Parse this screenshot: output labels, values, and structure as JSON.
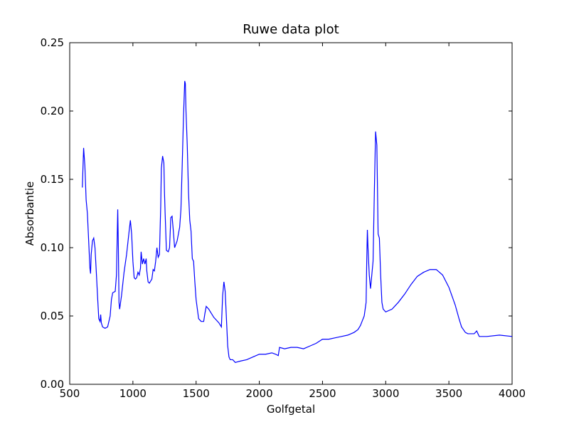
{
  "chart_data": {
    "type": "line",
    "title": "Ruwe data plot",
    "x_label": "Golfgetal",
    "y_label": "Absorbantie",
    "x": [
      600,
      610,
      620,
      630,
      640,
      650,
      660,
      665,
      670,
      680,
      690,
      700,
      710,
      720,
      730,
      740,
      745,
      750,
      760,
      780,
      800,
      820,
      830,
      840,
      860,
      870,
      880,
      885,
      890,
      895,
      910,
      930,
      950,
      970,
      980,
      990,
      1000,
      1010,
      1020,
      1030,
      1040,
      1050,
      1060,
      1065,
      1075,
      1085,
      1095,
      1105,
      1110,
      1120,
      1130,
      1150,
      1160,
      1170,
      1180,
      1190,
      1200,
      1210,
      1220,
      1225,
      1235,
      1245,
      1250,
      1255,
      1265,
      1280,
      1290,
      1300,
      1310,
      1320,
      1330,
      1350,
      1370,
      1380,
      1390,
      1400,
      1410,
      1415,
      1420,
      1430,
      1440,
      1450,
      1460,
      1470,
      1480,
      1490,
      1500,
      1510,
      1520,
      1540,
      1560,
      1570,
      1580,
      1600,
      1620,
      1640,
      1660,
      1680,
      1700,
      1710,
      1720,
      1730,
      1740,
      1750,
      1760,
      1770,
      1790,
      1810,
      1850,
      1900,
      1950,
      2000,
      2050,
      2100,
      2130,
      2150,
      2160,
      2200,
      2250,
      2300,
      2350,
      2400,
      2450,
      2500,
      2550,
      2600,
      2650,
      2700,
      2750,
      2780,
      2800,
      2830,
      2845,
      2850,
      2855,
      2860,
      2870,
      2880,
      2900,
      2910,
      2920,
      2930,
      2940,
      2950,
      2960,
      2970,
      2980,
      3000,
      3050,
      3100,
      3150,
      3200,
      3250,
      3300,
      3350,
      3400,
      3450,
      3500,
      3550,
      3580,
      3600,
      3630,
      3650,
      3700,
      3720,
      3740,
      3800,
      3900,
      4000
    ],
    "series": [
      {
        "color": "#0000ff",
        "values": [
          0.144,
          0.173,
          0.16,
          0.135,
          0.125,
          0.105,
          0.085,
          0.081,
          0.095,
          0.105,
          0.107,
          0.1,
          0.083,
          0.065,
          0.048,
          0.046,
          0.051,
          0.045,
          0.042,
          0.041,
          0.042,
          0.05,
          0.062,
          0.067,
          0.068,
          0.08,
          0.128,
          0.1,
          0.06,
          0.055,
          0.065,
          0.082,
          0.095,
          0.112,
          0.12,
          0.11,
          0.09,
          0.078,
          0.077,
          0.078,
          0.082,
          0.08,
          0.085,
          0.097,
          0.088,
          0.092,
          0.088,
          0.092,
          0.083,
          0.075,
          0.074,
          0.077,
          0.084,
          0.083,
          0.09,
          0.1,
          0.093,
          0.095,
          0.13,
          0.158,
          0.167,
          0.162,
          0.14,
          0.125,
          0.098,
          0.097,
          0.1,
          0.122,
          0.123,
          0.112,
          0.1,
          0.105,
          0.115,
          0.128,
          0.16,
          0.195,
          0.222,
          0.22,
          0.2,
          0.175,
          0.14,
          0.12,
          0.112,
          0.092,
          0.09,
          0.075,
          0.062,
          0.055,
          0.048,
          0.046,
          0.046,
          0.052,
          0.057,
          0.055,
          0.052,
          0.049,
          0.047,
          0.045,
          0.042,
          0.065,
          0.075,
          0.068,
          0.048,
          0.028,
          0.02,
          0.018,
          0.018,
          0.016,
          0.017,
          0.018,
          0.02,
          0.022,
          0.022,
          0.023,
          0.022,
          0.021,
          0.027,
          0.026,
          0.027,
          0.027,
          0.026,
          0.028,
          0.03,
          0.033,
          0.033,
          0.034,
          0.035,
          0.036,
          0.038,
          0.04,
          0.043,
          0.05,
          0.06,
          0.09,
          0.113,
          0.1,
          0.08,
          0.07,
          0.09,
          0.14,
          0.185,
          0.175,
          0.11,
          0.107,
          0.08,
          0.06,
          0.055,
          0.053,
          0.055,
          0.06,
          0.066,
          0.073,
          0.079,
          0.082,
          0.084,
          0.084,
          0.08,
          0.071,
          0.058,
          0.048,
          0.042,
          0.038,
          0.037,
          0.037,
          0.039,
          0.035,
          0.035,
          0.036,
          0.035
        ]
      }
    ],
    "xlim": [
      500,
      4000
    ],
    "xticks": [
      500,
      1000,
      1500,
      2000,
      2500,
      3000,
      3500,
      4000
    ],
    "ylim": [
      0,
      0.25
    ],
    "yticks": [
      {
        "value": 0,
        "label": "0.00"
      },
      0.05,
      {
        "value": 0.1,
        "label": "0.10"
      },
      0.15,
      {
        "value": 0.2,
        "label": "0.20"
      },
      0.25
    ]
  }
}
